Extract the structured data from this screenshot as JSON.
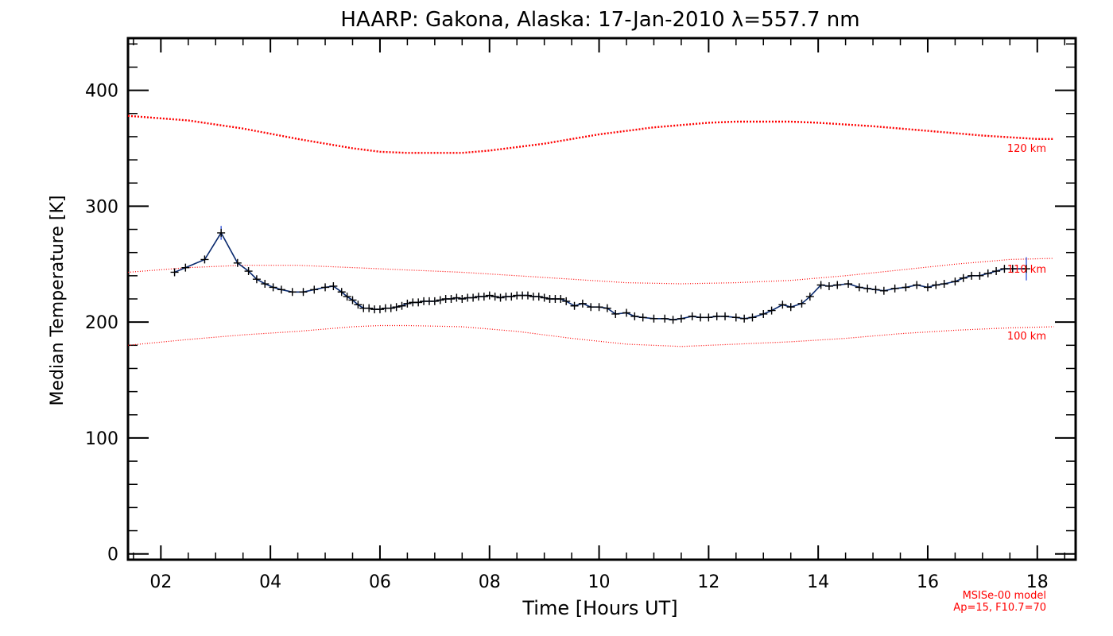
{
  "chart_data": {
    "type": "line",
    "title": "HAARP: Gakona,  Alaska: 17-Jan-2010 λ=557.7 nm",
    "xlabel": "Time [Hours UT]",
    "ylabel": "Median Temperature [K]",
    "xlim": [
      1.4,
      18.7
    ],
    "ylim": [
      -5,
      445
    ],
    "xticks": [
      2,
      4,
      6,
      8,
      10,
      12,
      14,
      16,
      18
    ],
    "xtick_labels": [
      "02",
      "04",
      "06",
      "08",
      "10",
      "12",
      "14",
      "16",
      "18"
    ],
    "yticks": [
      0,
      100,
      200,
      300,
      400
    ],
    "ytick_labels": [
      "0",
      "100",
      "200",
      "300",
      "400"
    ],
    "grid": false,
    "series": [
      {
        "color": "#000000",
        "line_color": "#0a2a6e",
        "errorbar_color": "#1a3fd6",
        "marker": "+",
        "x": [
          2.25,
          2.45,
          2.8,
          3.1,
          3.4,
          3.6,
          3.75,
          3.9,
          4.05,
          4.2,
          4.4,
          4.6,
          4.8,
          5.0,
          5.15,
          5.3,
          5.4,
          5.5,
          5.6,
          5.7,
          5.8,
          5.9,
          6.0,
          6.1,
          6.2,
          6.3,
          6.4,
          6.5,
          6.6,
          6.7,
          6.8,
          6.9,
          7.0,
          7.1,
          7.2,
          7.3,
          7.4,
          7.5,
          7.6,
          7.7,
          7.8,
          7.9,
          8.0,
          8.1,
          8.2,
          8.3,
          8.4,
          8.5,
          8.6,
          8.7,
          8.8,
          8.9,
          9.0,
          9.1,
          9.2,
          9.3,
          9.4,
          9.55,
          9.7,
          9.85,
          10.0,
          10.15,
          10.3,
          10.5,
          10.65,
          10.8,
          11.0,
          11.2,
          11.35,
          11.5,
          11.7,
          11.85,
          12.0,
          12.15,
          12.3,
          12.5,
          12.65,
          12.8,
          13.0,
          13.15,
          13.35,
          13.5,
          13.7,
          13.85,
          14.05,
          14.2,
          14.35,
          14.55,
          14.75,
          14.9,
          15.05,
          15.2,
          15.4,
          15.6,
          15.8,
          16.0,
          16.15,
          16.3,
          16.5,
          16.65,
          16.8,
          16.95,
          17.1,
          17.25,
          17.4,
          17.55,
          17.8
        ],
        "y": [
          243,
          247,
          254,
          277,
          251,
          244,
          237,
          233,
          230,
          228,
          226,
          226,
          228,
          230,
          231,
          226,
          222,
          219,
          215,
          212,
          212,
          211,
          211,
          212,
          212,
          213,
          214,
          216,
          217,
          217,
          218,
          218,
          218,
          219,
          220,
          220,
          221,
          220,
          221,
          221,
          222,
          222,
          223,
          222,
          221,
          222,
          222,
          223,
          223,
          223,
          222,
          222,
          221,
          220,
          220,
          220,
          218,
          214,
          216,
          213,
          213,
          212,
          207,
          208,
          205,
          204,
          203,
          203,
          202,
          203,
          205,
          204,
          204,
          205,
          205,
          204,
          203,
          204,
          207,
          210,
          215,
          213,
          216,
          222,
          232,
          231,
          232,
          233,
          230,
          229,
          228,
          227,
          229,
          230,
          232,
          230,
          232,
          233,
          235,
          238,
          240,
          240,
          242,
          244,
          246,
          246,
          246
        ],
        "err": [
          3,
          3,
          3,
          6,
          3,
          2,
          2,
          2,
          2,
          2,
          2,
          2,
          2,
          2,
          2,
          2,
          2,
          2,
          2,
          2,
          2,
          2,
          2,
          2,
          2,
          2,
          2,
          2,
          2,
          2,
          2,
          2,
          2,
          2,
          2,
          2,
          2,
          2,
          2,
          2,
          2,
          2,
          2,
          2,
          2,
          2,
          2,
          2,
          2,
          2,
          2,
          2,
          2,
          2,
          2,
          2,
          2,
          2,
          2,
          2,
          2,
          2,
          2,
          2,
          2,
          2,
          2,
          2,
          2,
          2,
          2,
          2,
          2,
          2,
          2,
          2,
          2,
          2,
          2,
          2,
          2,
          2,
          2,
          2,
          2,
          2,
          2,
          2,
          2,
          2,
          2,
          2,
          2,
          2,
          2,
          2,
          2,
          2,
          2,
          2,
          2,
          2,
          2,
          2,
          2,
          3,
          10
        ]
      },
      {
        "name": "120 km",
        "color": "#ff0000",
        "style": "dotted-heavy",
        "x": [
          1.4,
          2.5,
          3.5,
          4.5,
          5.5,
          6.0,
          6.5,
          7.0,
          7.5,
          8.0,
          9.0,
          10.0,
          11.0,
          12.0,
          12.5,
          13.0,
          13.5,
          14.0,
          15.0,
          16.0,
          17.0,
          18.0,
          18.3
        ],
        "y": [
          378,
          374,
          367,
          358,
          350,
          347,
          346,
          346,
          346,
          348,
          354,
          362,
          368,
          372,
          373,
          373,
          373,
          372,
          369,
          365,
          361,
          358,
          358
        ]
      },
      {
        "name": "110 km",
        "color": "#ff0000",
        "style": "dotted",
        "x": [
          1.4,
          2.5,
          3.5,
          4.5,
          5.5,
          6.5,
          7.5,
          8.5,
          9.5,
          10.5,
          11.5,
          12.5,
          13.5,
          14.5,
          15.5,
          16.5,
          17.5,
          18.3
        ],
        "y": [
          243,
          247,
          249,
          249,
          247,
          245,
          243,
          240,
          237,
          234,
          233,
          234,
          236,
          240,
          245,
          250,
          254,
          255
        ]
      },
      {
        "name": "100 km",
        "color": "#ff0000",
        "style": "dotted",
        "x": [
          1.4,
          2.5,
          3.5,
          4.5,
          5.5,
          6.0,
          6.5,
          7.5,
          8.5,
          9.5,
          10.5,
          11.5,
          12.5,
          13.5,
          14.5,
          15.5,
          16.5,
          17.5,
          18.3
        ],
        "y": [
          180,
          185,
          189,
          192,
          196,
          197,
          197,
          196,
          192,
          186,
          181,
          179,
          181,
          183,
          186,
          190,
          193,
          195,
          196
        ]
      }
    ],
    "curve_labels": [
      "120 km",
      "110 km",
      "100 km"
    ],
    "annotations": [
      "MSISe-00 model",
      "Ap=15, F10.7=70"
    ]
  }
}
